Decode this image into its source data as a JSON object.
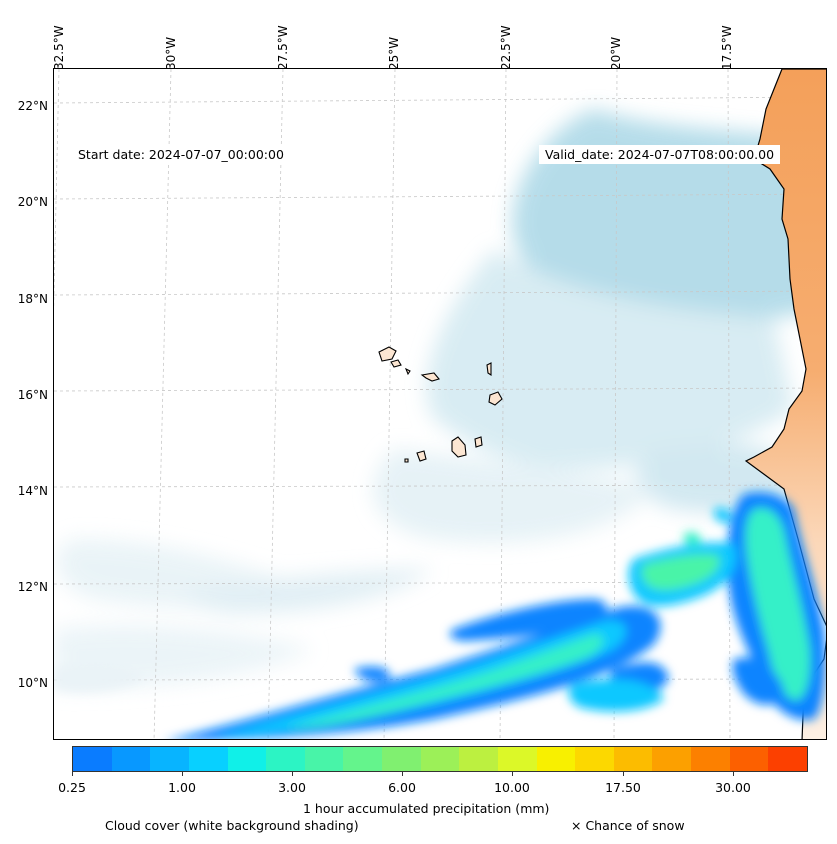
{
  "map": {
    "start_date": "Start date: 2024-07-07_00:00:00",
    "valid_date": "Valid_date: 2024-07-07T08:00:00.00",
    "lon_labels": [
      "32.5°W",
      "30°W",
      "27.5°W",
      "25°W",
      "22.5°W",
      "20°W",
      "17.5°W"
    ],
    "lat_labels": [
      "22°N",
      "20°N",
      "18°N",
      "16°N",
      "14°N",
      "12°N",
      "10°N"
    ],
    "extent": {
      "lon": [
        -32.7,
        -15.5
      ],
      "lat": [
        8.9,
        22.8
      ]
    },
    "colors": {
      "cloud": "#a9d7e6",
      "land_high": "#f4a05a",
      "land_low": "#fbe2cc",
      "precip_low": "#0a84ff",
      "precip_mid": "#36f0c8",
      "precip_high": "#7cf07a"
    }
  },
  "colorbar": {
    "label": "1 hour accumulated precipitation (mm)",
    "ticks": [
      "0.25",
      "1.00",
      "3.00",
      "6.00",
      "10.00",
      "17.50",
      "30.00"
    ],
    "colors": [
      "#0a7cff",
      "#0898ff",
      "#08b4ff",
      "#08d0ff",
      "#10f0e8",
      "#2cf4c4",
      "#48f4a8",
      "#64f48c",
      "#80f070",
      "#9cf058",
      "#bcf040",
      "#dcf828",
      "#f8f000",
      "#fcd800",
      "#fcbc00",
      "#fca000",
      "#fc8000",
      "#fc6000",
      "#fc4000"
    ]
  },
  "captions": {
    "cloud": "Cloud cover (white background shading)",
    "snow": "× Chance of snow"
  }
}
